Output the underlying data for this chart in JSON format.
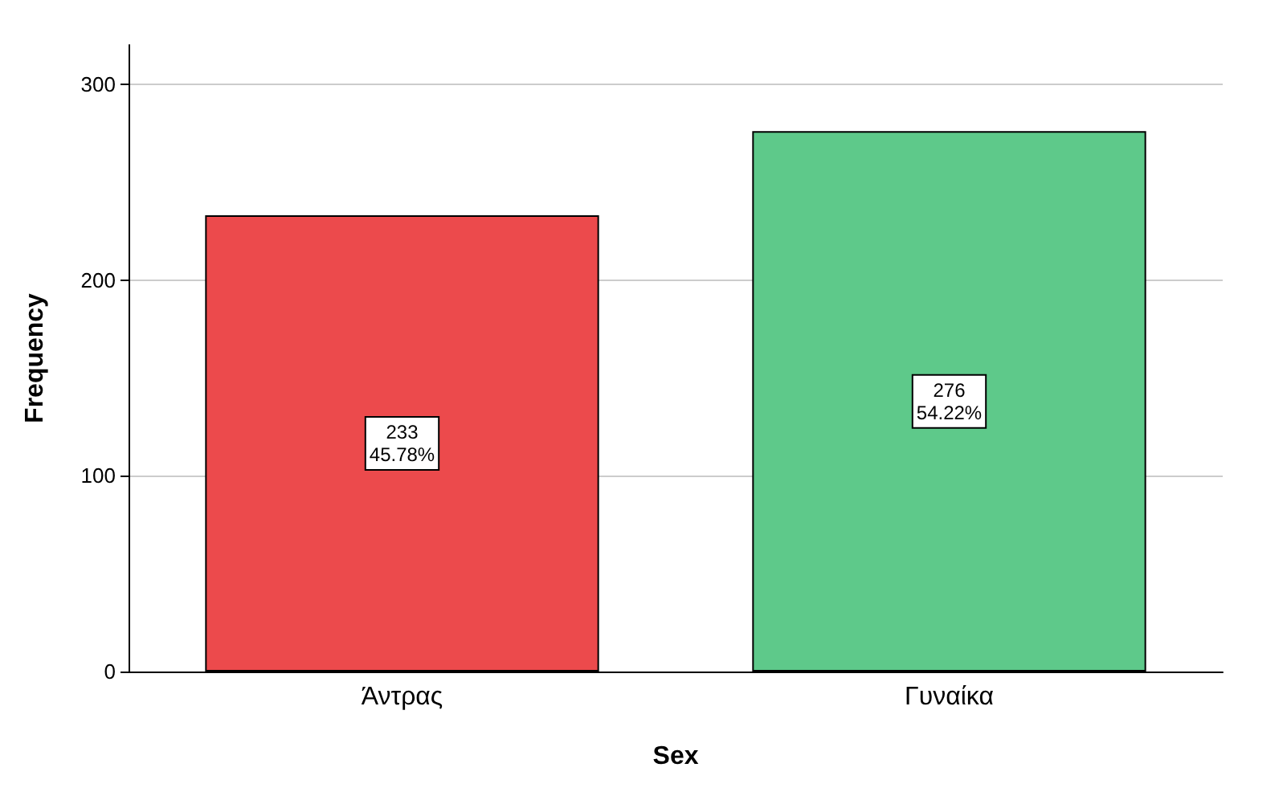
{
  "chart_data": {
    "type": "bar",
    "xlabel": "Sex",
    "ylabel": "Frequency",
    "categories": [
      "Άντρας",
      "Γυναίκα"
    ],
    "values": [
      233,
      276
    ],
    "colors": [
      "#ec4a4c",
      "#5ec98a"
    ],
    "value_labels": [
      "233\n45.78%",
      "276\n54.22%"
    ],
    "ylim": [
      0,
      320
    ],
    "yticks": [
      0,
      100,
      200,
      300
    ],
    "grid": "y"
  }
}
